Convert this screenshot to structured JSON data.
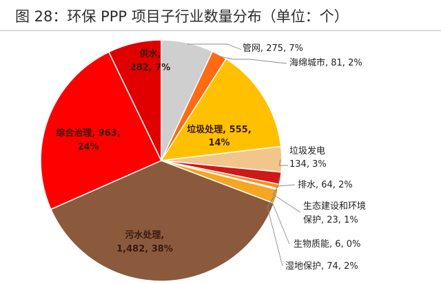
{
  "chart_data": {
    "type": "pie",
    "title": "图 28：环保 PPP 项目子行业数量分布（单位：个）",
    "start_angle_deg": 0,
    "direction": "clockwise",
    "slices": [
      {
        "name": "管网",
        "value": 275,
        "percent": "7%",
        "label": "管网, 275, 7%",
        "color": "#cfcfcf"
      },
      {
        "name": "海绵城市",
        "value": 81,
        "percent": "2%",
        "label": "海绵城市, 81, 2%",
        "color": "#ff6a13"
      },
      {
        "name": "垃圾处理",
        "value": 555,
        "percent": "14%",
        "label_lines": [
          "垃圾处理, 555,",
          "14%"
        ],
        "color": "#ffc000"
      },
      {
        "name": "垃圾发电",
        "value": 134,
        "percent": "3%",
        "label_lines": [
          "垃圾发电",
          "134, 3%"
        ],
        "color": "#f2c58a"
      },
      {
        "name": "排水",
        "value": 64,
        "percent": "2%",
        "label": "排水, 64, 2%",
        "color": "#d01818"
      },
      {
        "name": "生态建设和环境保护",
        "value": 23,
        "percent": "1%",
        "label_lines": [
          "生态建设和环境",
          "保护, 23, 1%"
        ],
        "color": "#ff8c1a"
      },
      {
        "name": "生物质能",
        "value": 6,
        "percent": "0%",
        "label": "生物质能, 6, 0%",
        "color": "#a05010"
      },
      {
        "name": "湿地保护",
        "value": 74,
        "percent": "2%",
        "label": "湿地保护, 74, 2%",
        "color": "#f6a623"
      },
      {
        "name": "污水处理",
        "value": 1482,
        "percent": "38%",
        "label_lines": [
          "污水处理,",
          "1,482, 38%"
        ],
        "color": "#8b5a3c"
      },
      {
        "name": "综合治理",
        "value": 963,
        "percent": "24%",
        "label_lines": [
          "综合治理, 963,",
          "24%"
        ],
        "color": "#ff0000"
      },
      {
        "name": "供水",
        "value": 282,
        "percent": "7%",
        "label_lines": [
          "供水,",
          "282, 7%"
        ],
        "color": "#e00000"
      }
    ]
  }
}
